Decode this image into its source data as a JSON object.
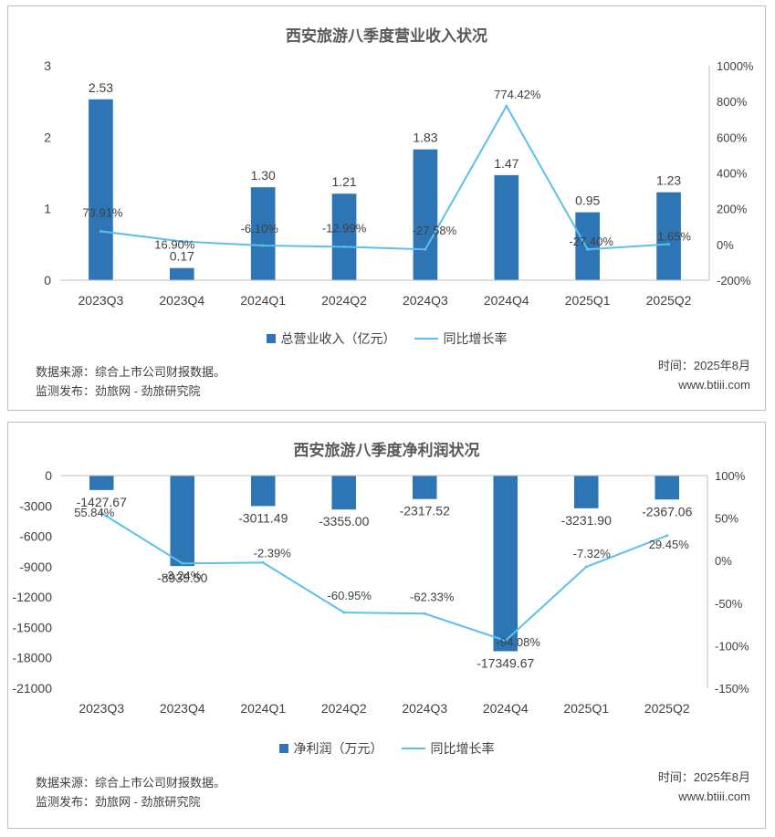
{
  "chart_data": [
    {
      "type": "bar+line",
      "title": "西安旅游八季度营业收入状况",
      "categories": [
        "2023Q3",
        "2023Q4",
        "2024Q1",
        "2024Q2",
        "2024Q3",
        "2024Q4",
        "2025Q1",
        "2025Q2"
      ],
      "series": [
        {
          "name": "总营业收入（亿元）",
          "type": "bar",
          "axis": "left",
          "values": [
            2.53,
            0.17,
            1.3,
            1.21,
            1.83,
            1.47,
            0.95,
            1.23
          ],
          "labels": [
            "2.53",
            "0.17",
            "1.30",
            "1.21",
            "1.83",
            "1.47",
            "0.95",
            "1.23"
          ]
        },
        {
          "name": "同比增长率",
          "type": "line",
          "axis": "right",
          "values": [
            73.91,
            16.9,
            -6.1,
            -12.99,
            -27.58,
            774.42,
            -27.4,
            1.65
          ],
          "labels": [
            "73.91%",
            "16.90%",
            "-6.10%",
            "-12.99%",
            "-27.58%",
            "774.42%",
            "-27.40%",
            "1.65%"
          ]
        }
      ],
      "left_axis": {
        "min": 0,
        "max": 3,
        "ticks": [
          "0",
          "1",
          "2",
          "3"
        ],
        "tick_values": [
          0,
          1,
          2,
          3
        ]
      },
      "right_axis": {
        "min": -200,
        "max": 1000,
        "ticks": [
          "-200%",
          "0%",
          "200%",
          "400%",
          "600%",
          "800%",
          "1000%"
        ],
        "tick_values": [
          -200,
          0,
          200,
          400,
          600,
          800,
          1000
        ]
      },
      "legend_position": "bottom",
      "grid": false,
      "colors": {
        "bar": "#2e75b6",
        "line": "#5bc0eb"
      },
      "footer": {
        "source": "数据来源：综合上市公司财报数据。",
        "publisher": "监测发布：劲旅网 - 劲旅研究院",
        "time": "时间：2025年8月",
        "site": "www.btiii.com"
      }
    },
    {
      "type": "bar+line",
      "title": "西安旅游八季度净利润状况",
      "categories": [
        "2023Q3",
        "2023Q4",
        "2024Q1",
        "2024Q2",
        "2024Q3",
        "2024Q4",
        "2025Q1",
        "2025Q2"
      ],
      "series": [
        {
          "name": "净利润（万元）",
          "type": "bar",
          "axis": "left",
          "values": [
            -1427.67,
            -8939.5,
            -3011.49,
            -3355.0,
            -2317.52,
            -17349.67,
            -3231.9,
            -2367.06
          ],
          "labels": [
            "-1427.67",
            "-8939.50",
            "-3011.49",
            "-3355.00",
            "-2317.52",
            "-17349.67",
            "-3231.90",
            "-2367.06"
          ]
        },
        {
          "name": "同比增长率",
          "type": "line",
          "axis": "right",
          "values": [
            55.84,
            -3.24,
            -2.39,
            -60.95,
            -62.33,
            -94.08,
            -7.32,
            29.45
          ],
          "labels": [
            "55.84%",
            "-3.24%",
            "-2.39%",
            "-60.95%",
            "-62.33%",
            "-94.08%",
            "-7.32%",
            "29.45%"
          ]
        }
      ],
      "left_axis": {
        "min": -21000,
        "max": 0,
        "ticks": [
          "0",
          "-3000",
          "-6000",
          "-9000",
          "-12000",
          "-15000",
          "-18000",
          "-21000"
        ],
        "tick_values": [
          0,
          -3000,
          -6000,
          -9000,
          -12000,
          -15000,
          -18000,
          -21000
        ]
      },
      "right_axis": {
        "min": -150,
        "max": 100,
        "ticks": [
          "100%",
          "50%",
          "0%",
          "-50%",
          "-100%",
          "-150%"
        ],
        "tick_values": [
          100,
          50,
          0,
          -50,
          -100,
          -150
        ]
      },
      "legend_position": "bottom",
      "grid": false,
      "colors": {
        "bar": "#2e75b6",
        "line": "#5bc0eb"
      },
      "footer": {
        "source": "数据来源：综合上市公司财报数据。",
        "publisher": "监测发布：劲旅网 - 劲旅研究院",
        "time": "时间：2025年8月",
        "site": "www.btiii.com"
      }
    }
  ]
}
